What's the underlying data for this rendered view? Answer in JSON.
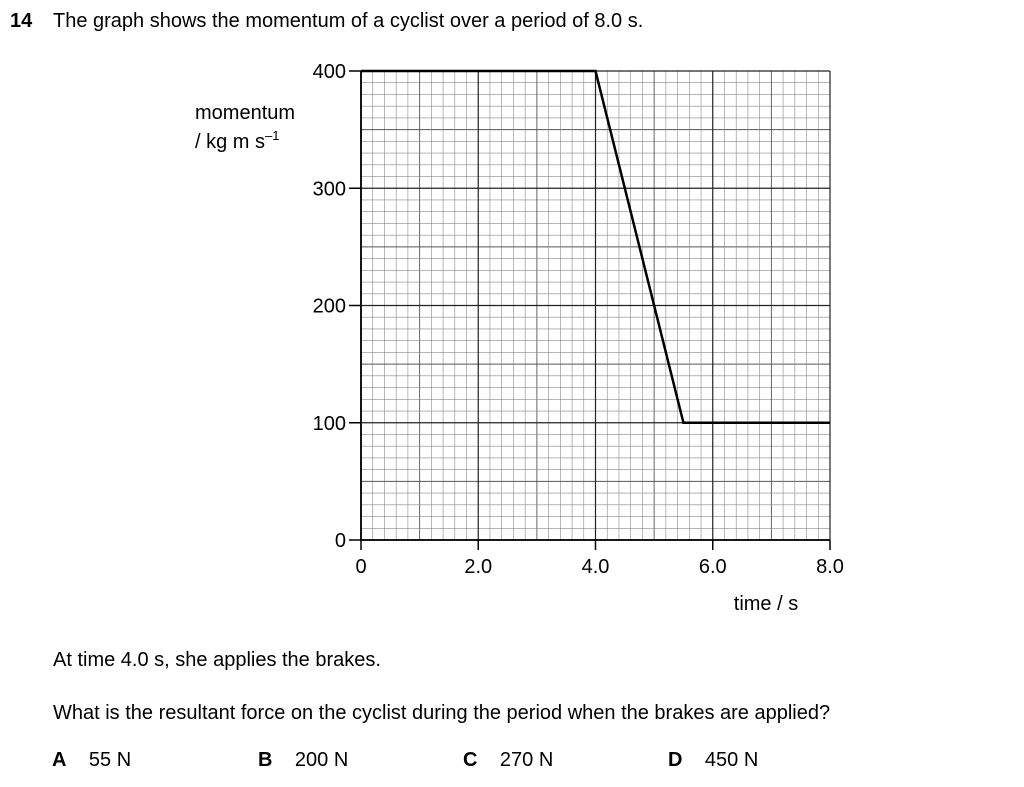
{
  "question": {
    "number": "14",
    "stem": "The graph shows the momentum of a cyclist over a period of 8.0 s.",
    "statement": "At time 4.0 s, she applies the brakes.",
    "prompt": "What is the resultant force on the cyclist during the period when the brakes are applied?",
    "options": [
      {
        "letter": "A",
        "value": "55 N"
      },
      {
        "letter": "B",
        "value": "200 N"
      },
      {
        "letter": "C",
        "value": "270 N"
      },
      {
        "letter": "D",
        "value": "450 N"
      }
    ]
  },
  "chart_data": {
    "type": "line",
    "title": "",
    "ylabel_line1": "momentum",
    "ylabel_line2": "/ kg m s",
    "ylabel_sup": "–1",
    "xlabel": "time / s",
    "xlim": [
      0,
      8.0
    ],
    "ylim": [
      0,
      400
    ],
    "x_ticks": [
      0,
      2.0,
      4.0,
      6.0,
      8.0
    ],
    "x_tick_labels": [
      "0",
      "2.0",
      "4.0",
      "6.0",
      "8.0"
    ],
    "y_ticks": [
      0,
      100,
      200,
      300,
      400
    ],
    "y_tick_labels": [
      "0",
      "100",
      "200",
      "300",
      "400"
    ],
    "grid": true,
    "series": [
      {
        "points": [
          [
            0,
            400
          ],
          [
            4.0,
            400
          ],
          [
            5.5,
            100
          ],
          [
            8.0,
            100
          ]
        ]
      }
    ]
  }
}
